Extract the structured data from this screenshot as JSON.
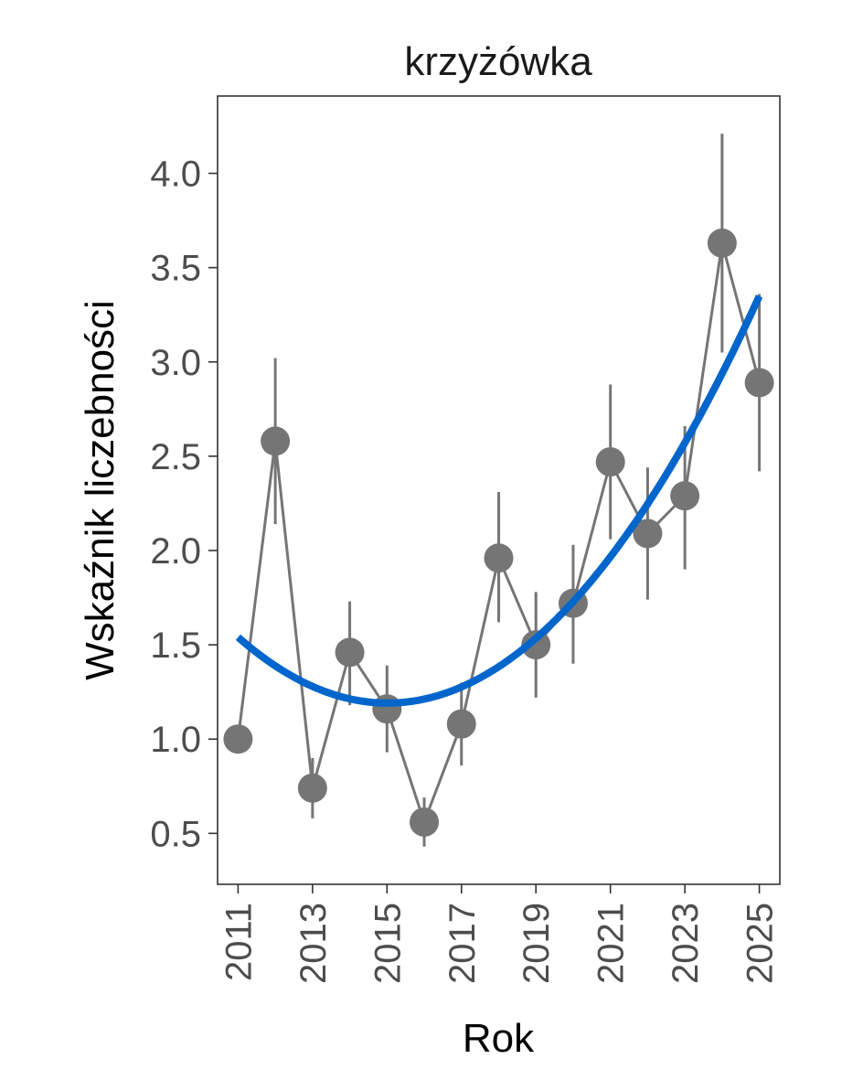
{
  "chart_data": {
    "type": "line",
    "title": "krzyżówka",
    "xlabel": "Rok",
    "ylabel": "Wskaźnik liczebności",
    "xlim": [
      2010.45,
      2025.55
    ],
    "ylim": [
      0.23,
      4.41
    ],
    "x_ticks": [
      2011,
      2013,
      2015,
      2017,
      2019,
      2021,
      2023,
      2025
    ],
    "x_tick_labels": [
      "2011",
      "2013",
      "2015",
      "2017",
      "2019",
      "2021",
      "2023",
      "2025"
    ],
    "y_ticks": [
      0.5,
      1.0,
      1.5,
      2.0,
      2.5,
      3.0,
      3.5,
      4.0
    ],
    "y_tick_labels": [
      "0.5",
      "1.0",
      "1.5",
      "2.0",
      "2.5",
      "3.0",
      "3.5",
      "4.0"
    ],
    "series": [
      {
        "x": [
          2011,
          2012,
          2013,
          2014,
          2015,
          2016,
          2017,
          2018,
          2019,
          2020,
          2021,
          2022,
          2023,
          2024,
          2025
        ],
        "y": [
          1.0,
          2.58,
          0.74,
          1.46,
          1.16,
          0.56,
          1.08,
          1.96,
          1.5,
          1.72,
          2.47,
          2.09,
          2.29,
          3.63,
          2.89
        ],
        "lower": [
          1.0,
          2.14,
          0.58,
          1.18,
          0.93,
          0.43,
          0.86,
          1.62,
          1.22,
          1.4,
          2.06,
          1.74,
          1.9,
          3.05,
          2.42
        ],
        "upper": [
          1.0,
          3.02,
          0.9,
          1.73,
          1.39,
          0.69,
          1.3,
          2.31,
          1.78,
          2.03,
          2.88,
          2.44,
          2.66,
          4.21,
          3.36
        ]
      }
    ],
    "trend": {
      "type": "quadratic",
      "x": [
        2011,
        2013,
        2015,
        2016,
        2017,
        2019,
        2021,
        2023,
        2025
      ],
      "y": [
        1.55,
        1.28,
        1.19,
        1.2,
        1.26,
        1.52,
        2.0,
        2.6,
        3.32
      ]
    },
    "colors": {
      "points": "#757575",
      "line": "#757575",
      "errorbars": "#757575",
      "trend": "#0066cc",
      "axis": "#333333",
      "tick_label": "#4d4d4d"
    },
    "grid": false,
    "legend": "none"
  }
}
